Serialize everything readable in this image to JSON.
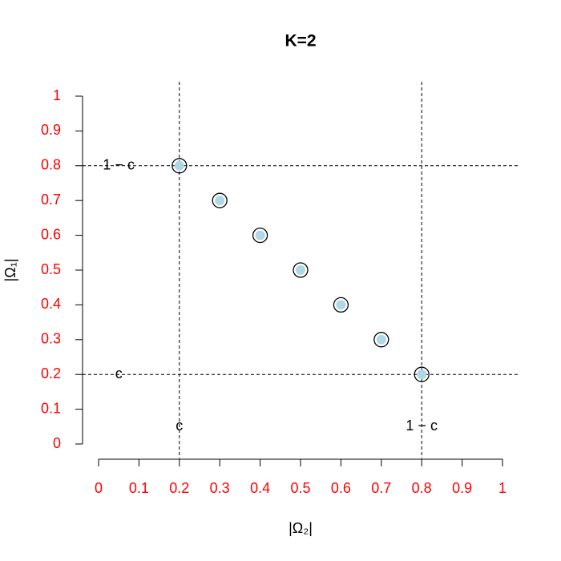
{
  "chart_data": {
    "type": "scatter",
    "title": "K=2",
    "x_label": "|Ω₂|",
    "y_label": "|Ω₁|",
    "x": [
      0.2,
      0.3,
      0.4,
      0.5,
      0.6,
      0.7,
      0.8
    ],
    "series": [
      {
        "values": [
          0.8,
          0.7,
          0.6,
          0.5,
          0.4,
          0.3,
          0.2
        ],
        "color": "#add8e6",
        "edge_color": "#000000"
      }
    ],
    "xlim": [
      0,
      1
    ],
    "ylim": [
      0,
      1
    ],
    "xticks": [
      0,
      0.1,
      0.2,
      0.3,
      0.4,
      0.5,
      0.6,
      0.7,
      0.8,
      0.9,
      1
    ],
    "yticks": [
      0,
      0.1,
      0.2,
      0.3,
      0.4,
      0.5,
      0.6,
      0.7,
      0.8,
      0.9,
      1
    ],
    "tick_label_color": "#ff0000",
    "hlines": [
      0.2,
      0.8
    ],
    "vlines": [
      0.2,
      0.8
    ],
    "annotations": [
      {
        "text": "1 − c",
        "x": 0.05,
        "y": 0.8
      },
      {
        "text": "c",
        "x": 0.05,
        "y": 0.2
      },
      {
        "text": "c",
        "x": 0.2,
        "y": 0.05
      },
      {
        "text": "1 − c",
        "x": 0.8,
        "y": 0.05
      }
    ]
  }
}
